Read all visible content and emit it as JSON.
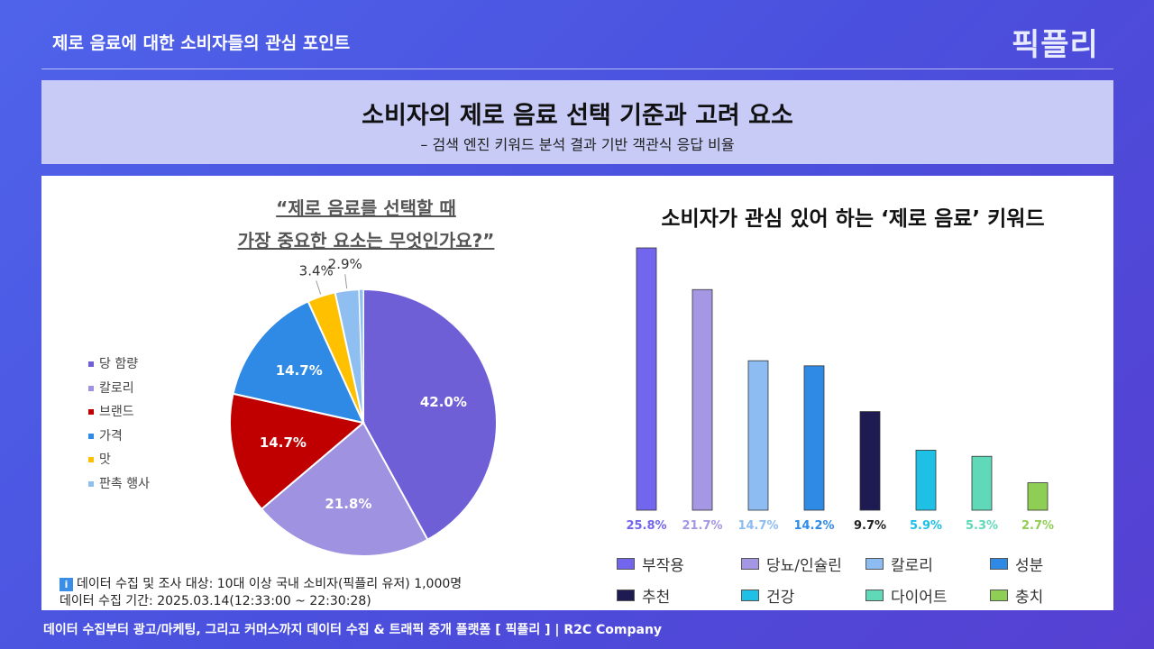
{
  "header": {
    "title": "제로 음료에 대한 소비자들의 관심 포인트",
    "logo": "픽플리"
  },
  "banner": {
    "title": "소비자의 제로 음료 선택 기준과 고려 요소",
    "subtitle": "– 검색 엔진 키워드 분석 결과 기반 객관식 응답 비율"
  },
  "chart_data": [
    {
      "type": "pie",
      "title": "“제로 음료를 선택할 때 가장 중요한 요소는 무엇인가요?”",
      "title_lines": [
        "“제로 음료를 선택할 때",
        "가장 중요한 요소는 무엇인가요?”"
      ],
      "legend_position": "left",
      "categories": [
        "당 함량",
        "칼로리",
        "브랜드",
        "가격",
        "맛",
        "판촉 행사"
      ],
      "values": [
        42.0,
        21.8,
        14.7,
        14.7,
        3.4,
        2.9
      ],
      "labels": [
        "42.0%",
        "21.8%",
        "14.7%",
        "14.7%",
        "3.4%",
        "2.9%"
      ],
      "colors": [
        "#6f5fd6",
        "#9f92e0",
        "#c00000",
        "#2f8ae6",
        "#ffc000",
        "#8fbff0"
      ]
    },
    {
      "type": "bar",
      "title": "소비자가 관심 있어 하는 ‘제로 음료’ 키워드",
      "legend_position": "bottom",
      "ylim": [
        0,
        26
      ],
      "categories": [
        "부작용",
        "당뇨/인슐린",
        "칼로리",
        "성분",
        "추천",
        "건강",
        "다이어트",
        "충치"
      ],
      "values": [
        25.8,
        21.7,
        14.7,
        14.2,
        9.7,
        5.9,
        5.3,
        2.7
      ],
      "labels": [
        "25.8%",
        "21.7%",
        "14.7%",
        "14.2%",
        "9.7%",
        "5.9%",
        "5.3%",
        "2.7%"
      ],
      "colors": [
        "#7366ee",
        "#a597e3",
        "#8cbcf2",
        "#2f8ae6",
        "#1e1a52",
        "#1ec0e6",
        "#5fd9b8",
        "#8fce55"
      ]
    }
  ],
  "note": {
    "target": "데이터 수집 및 조사 대상: 10대 이상 국내 소비자(픽플리 유저) 1,000명",
    "period": "데이터 수집 기간: 2025.03.14(12:33:00 ~ 22:30:28)"
  },
  "footer": "데이터 수집부터 광고/마케팅, 그리고 커머스까지 데이터 수집 & 트래픽 중개 플랫폼 [ 픽플리 ]  |  R2C Company"
}
